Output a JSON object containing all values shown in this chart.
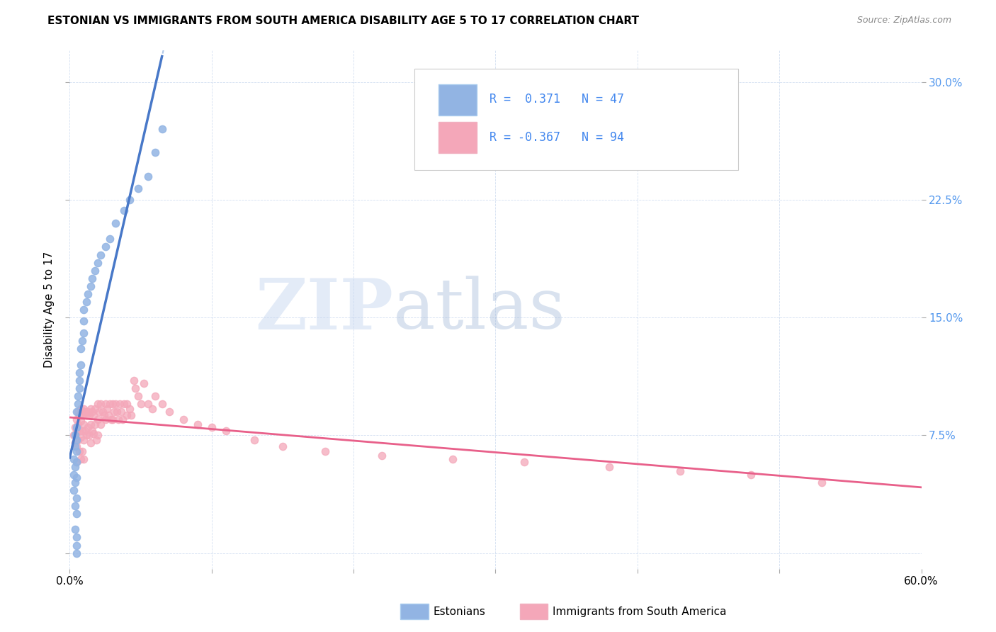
{
  "title": "ESTONIAN VS IMMIGRANTS FROM SOUTH AMERICA DISABILITY AGE 5 TO 17 CORRELATION CHART",
  "source": "Source: ZipAtlas.com",
  "ylabel": "Disability Age 5 to 17",
  "xlim": [
    0.0,
    0.6
  ],
  "ylim": [
    -0.01,
    0.32
  ],
  "legend_blue_r": "0.371",
  "legend_blue_n": "47",
  "legend_pink_r": "-0.367",
  "legend_pink_n": "94",
  "blue_color": "#92b4e3",
  "pink_color": "#f4a7b9",
  "blue_line_color": "#4878c8",
  "pink_line_color": "#e8608a",
  "dashed_line_color": "#b0c8e8",
  "watermark_zip": "ZIP",
  "watermark_atlas": "atlas",
  "blue_scatter_x": [
    0.003,
    0.003,
    0.003,
    0.004,
    0.004,
    0.004,
    0.004,
    0.004,
    0.004,
    0.005,
    0.005,
    0.005,
    0.005,
    0.005,
    0.005,
    0.005,
    0.005,
    0.005,
    0.005,
    0.005,
    0.006,
    0.006,
    0.007,
    0.007,
    0.007,
    0.008,
    0.008,
    0.009,
    0.01,
    0.01,
    0.01,
    0.012,
    0.013,
    0.015,
    0.016,
    0.018,
    0.02,
    0.022,
    0.025,
    0.028,
    0.032,
    0.038,
    0.042,
    0.048,
    0.055,
    0.06,
    0.065
  ],
  "blue_scatter_y": [
    0.06,
    0.05,
    0.04,
    0.075,
    0.068,
    0.055,
    0.045,
    0.03,
    0.015,
    0.08,
    0.072,
    0.065,
    0.058,
    0.048,
    0.035,
    0.025,
    0.01,
    0.005,
    0.0,
    0.09,
    0.095,
    0.1,
    0.105,
    0.11,
    0.115,
    0.12,
    0.13,
    0.135,
    0.14,
    0.148,
    0.155,
    0.16,
    0.165,
    0.17,
    0.175,
    0.18,
    0.185,
    0.19,
    0.195,
    0.2,
    0.21,
    0.218,
    0.225,
    0.232,
    0.24,
    0.255,
    0.27
  ],
  "pink_scatter_x": [
    0.003,
    0.004,
    0.004,
    0.005,
    0.005,
    0.005,
    0.005,
    0.006,
    0.006,
    0.006,
    0.007,
    0.007,
    0.007,
    0.008,
    0.008,
    0.008,
    0.008,
    0.009,
    0.009,
    0.009,
    0.01,
    0.01,
    0.01,
    0.01,
    0.011,
    0.011,
    0.012,
    0.012,
    0.013,
    0.013,
    0.014,
    0.014,
    0.015,
    0.015,
    0.015,
    0.016,
    0.016,
    0.017,
    0.017,
    0.018,
    0.018,
    0.019,
    0.02,
    0.02,
    0.02,
    0.021,
    0.022,
    0.022,
    0.023,
    0.024,
    0.025,
    0.025,
    0.026,
    0.027,
    0.028,
    0.029,
    0.03,
    0.03,
    0.031,
    0.032,
    0.033,
    0.034,
    0.035,
    0.036,
    0.037,
    0.038,
    0.04,
    0.04,
    0.042,
    0.043,
    0.045,
    0.046,
    0.048,
    0.05,
    0.052,
    0.055,
    0.058,
    0.06,
    0.065,
    0.07,
    0.08,
    0.09,
    0.1,
    0.11,
    0.13,
    0.15,
    0.18,
    0.22,
    0.27,
    0.32,
    0.38,
    0.43,
    0.48,
    0.53
  ],
  "pink_scatter_y": [
    0.075,
    0.08,
    0.07,
    0.085,
    0.078,
    0.068,
    0.058,
    0.09,
    0.082,
    0.072,
    0.088,
    0.078,
    0.065,
    0.092,
    0.084,
    0.074,
    0.06,
    0.088,
    0.078,
    0.065,
    0.092,
    0.082,
    0.072,
    0.06,
    0.09,
    0.078,
    0.088,
    0.075,
    0.09,
    0.08,
    0.088,
    0.075,
    0.092,
    0.082,
    0.07,
    0.09,
    0.078,
    0.088,
    0.076,
    0.092,
    0.082,
    0.072,
    0.095,
    0.085,
    0.075,
    0.09,
    0.095,
    0.082,
    0.09,
    0.088,
    0.095,
    0.085,
    0.092,
    0.088,
    0.095,
    0.085,
    0.095,
    0.085,
    0.09,
    0.095,
    0.09,
    0.085,
    0.095,
    0.09,
    0.085,
    0.095,
    0.095,
    0.088,
    0.092,
    0.088,
    0.11,
    0.105,
    0.1,
    0.095,
    0.108,
    0.095,
    0.092,
    0.1,
    0.095,
    0.09,
    0.085,
    0.082,
    0.08,
    0.078,
    0.072,
    0.068,
    0.065,
    0.062,
    0.06,
    0.058,
    0.055,
    0.052,
    0.05,
    0.045
  ]
}
